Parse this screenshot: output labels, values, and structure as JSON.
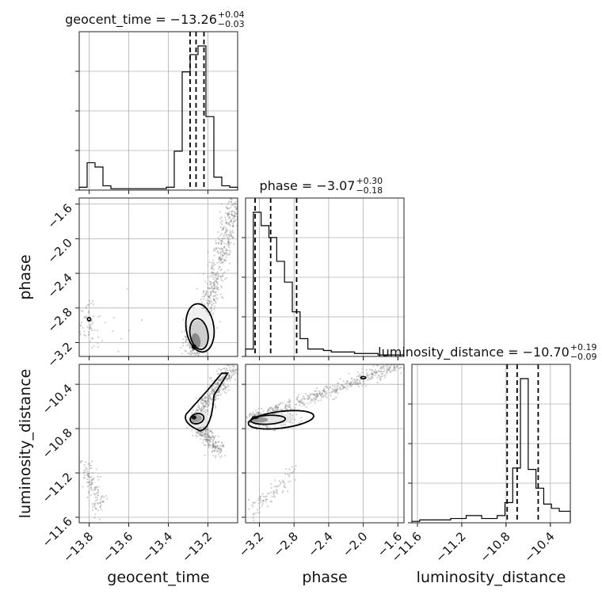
{
  "chart_data": {
    "type": "corner",
    "parameters": [
      "geocent_time",
      "phase",
      "luminosity_distance"
    ],
    "axis_labels": {
      "geocent_time": "geocent_time",
      "phase": "phase",
      "luminosity_distance": "luminosity_distance"
    },
    "ranges": {
      "geocent_time": [
        -13.85,
        -13.05
      ],
      "phase": [
        -3.36,
        -1.53
      ],
      "luminosity_distance": [
        -11.65,
        -10.22
      ]
    },
    "ticks": {
      "geocent_time": [
        "−13.8",
        "−13.6",
        "−13.4",
        "−13.2"
      ],
      "phase": [
        "−3.2",
        "−2.8",
        "−2.4",
        "−2.0",
        "−1.6"
      ],
      "luminosity_distance": [
        "−11.6",
        "−11.2",
        "−10.8",
        "−10.4"
      ]
    },
    "tick_values": {
      "geocent_time": [
        -13.8,
        -13.6,
        -13.4,
        -13.2
      ],
      "phase": [
        -3.2,
        -2.8,
        -2.4,
        -2.0,
        -1.6
      ],
      "luminosity_distance": [
        -11.6,
        -11.2,
        -10.8,
        -10.4
      ]
    },
    "titles": [
      {
        "param": "geocent_time",
        "label": "geocent_time = −13.26",
        "plus": "+0.04",
        "minus": "−0.03"
      },
      {
        "param": "phase",
        "label": "phase = −3.07",
        "plus": "+0.30",
        "minus": "−0.18"
      },
      {
        "param": "luminosity_distance",
        "label": "luminosity_distance = −10.70",
        "plus": "+0.19",
        "minus": "−0.09"
      }
    ],
    "quantiles": {
      "geocent_time": [
        -13.29,
        -13.26,
        -13.22
      ],
      "phase": [
        -3.25,
        -3.07,
        -2.77
      ],
      "luminosity_distance": [
        -10.79,
        -10.7,
        -10.51
      ]
    },
    "histograms": {
      "geocent_time": {
        "edges": [
          -13.85,
          -13.81,
          -13.77,
          -13.73,
          -13.69,
          -13.65,
          -13.61,
          -13.57,
          -13.53,
          -13.49,
          -13.45,
          -13.41,
          -13.37,
          -13.33,
          -13.29,
          -13.25,
          -13.21,
          -13.17,
          -13.13,
          -13.09,
          -13.05
        ],
        "counts": [
          2,
          19,
          16,
          3,
          1,
          1,
          1,
          1,
          1,
          1,
          1,
          2,
          27,
          82,
          94,
          100,
          51,
          9,
          3,
          2
        ]
      },
      "phase": {
        "edges": [
          -3.36,
          -3.27,
          -3.18,
          -3.09,
          -3.0,
          -2.91,
          -2.82,
          -2.73,
          -2.64,
          -2.55,
          -2.46,
          -2.37,
          -2.28,
          -2.19,
          -2.1,
          -2.01,
          -1.92,
          -1.83,
          -1.74,
          -1.65,
          -1.53
        ],
        "counts": [
          5,
          97,
          88,
          80,
          64,
          50,
          30,
          12,
          5,
          5,
          4,
          3,
          3,
          3,
          2,
          2,
          2,
          1,
          1,
          1
        ]
      },
      "luminosity_distance": {
        "edges": [
          -11.65,
          -11.58,
          -11.51,
          -11.44,
          -11.37,
          -11.3,
          -11.23,
          -11.16,
          -11.09,
          -11.02,
          -10.95,
          -10.88,
          -10.81,
          -10.74,
          -10.67,
          -10.6,
          -10.53,
          -10.46,
          -10.39,
          -10.32,
          -10.22
        ],
        "counts": [
          1,
          2,
          2,
          2,
          2,
          3,
          3,
          5,
          5,
          3,
          3,
          5,
          14,
          38,
          100,
          37,
          24,
          13,
          10,
          8
        ]
      }
    },
    "grid": true
  }
}
